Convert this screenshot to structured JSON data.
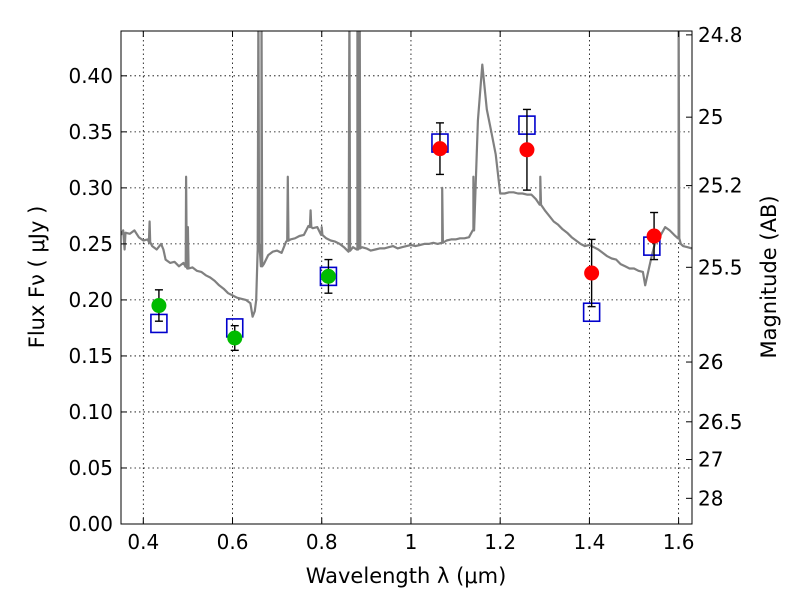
{
  "chart_data": {
    "type": "scatter",
    "xlabel": "Wavelength  λ (μm)",
    "ylabel": "Flux  Fν  ( μJy )",
    "y2label": "Magnitude (AB)",
    "xlim": [
      0.35,
      1.63
    ],
    "ylim": [
      0.0,
      0.44
    ],
    "grid": true,
    "x_ticks": [
      {
        "value": 0.4,
        "label": "0.4"
      },
      {
        "value": 0.6,
        "label": "0.6"
      },
      {
        "value": 0.8,
        "label": "0.8"
      },
      {
        "value": 1.0,
        "label": "1"
      },
      {
        "value": 1.2,
        "label": "1.2"
      },
      {
        "value": 1.4,
        "label": "1.4"
      },
      {
        "value": 1.6,
        "label": "1.6"
      }
    ],
    "y_ticks": [
      {
        "value": 0.0,
        "label": "0.00"
      },
      {
        "value": 0.05,
        "label": "0.05"
      },
      {
        "value": 0.1,
        "label": "0.10"
      },
      {
        "value": 0.15,
        "label": "0.15"
      },
      {
        "value": 0.2,
        "label": "0.20"
      },
      {
        "value": 0.25,
        "label": "0.25"
      },
      {
        "value": 0.3,
        "label": "0.30"
      },
      {
        "value": 0.35,
        "label": "0.35"
      },
      {
        "value": 0.4,
        "label": "0.40"
      }
    ],
    "y2_ticks": [
      {
        "mag": 24.8,
        "label": "24.8"
      },
      {
        "mag": 25,
        "label": "25"
      },
      {
        "mag": 25.2,
        "label": "25.2"
      },
      {
        "mag": 25.5,
        "label": "25.5"
      },
      {
        "mag": 26,
        "label": "26"
      },
      {
        "mag": 26.5,
        "label": "26.5"
      },
      {
        "mag": 27,
        "label": "27"
      },
      {
        "mag": 28,
        "label": "28"
      }
    ],
    "model_spectrum": {
      "color": "#808080",
      "points": [
        [
          0.35,
          0.258
        ],
        [
          0.355,
          0.262
        ],
        [
          0.358,
          0.245
        ],
        [
          0.36,
          0.26
        ],
        [
          0.37,
          0.259
        ],
        [
          0.38,
          0.262
        ],
        [
          0.39,
          0.256
        ],
        [
          0.4,
          0.253
        ],
        [
          0.41,
          0.254
        ],
        [
          0.42,
          0.248
        ],
        [
          0.43,
          0.245
        ],
        [
          0.44,
          0.25
        ],
        [
          0.445,
          0.245
        ],
        [
          0.45,
          0.236
        ],
        [
          0.46,
          0.233
        ],
        [
          0.47,
          0.234
        ],
        [
          0.48,
          0.23
        ],
        [
          0.49,
          0.233
        ],
        [
          0.495,
          0.23
        ],
        [
          0.5,
          0.228
        ],
        [
          0.51,
          0.229
        ],
        [
          0.52,
          0.226
        ],
        [
          0.53,
          0.225
        ],
        [
          0.54,
          0.222
        ],
        [
          0.55,
          0.22
        ],
        [
          0.56,
          0.217
        ],
        [
          0.57,
          0.213
        ],
        [
          0.58,
          0.21
        ],
        [
          0.59,
          0.206
        ],
        [
          0.6,
          0.204
        ],
        [
          0.61,
          0.202
        ],
        [
          0.62,
          0.201
        ],
        [
          0.63,
          0.2
        ],
        [
          0.64,
          0.197
        ],
        [
          0.645,
          0.185
        ],
        [
          0.65,
          0.19
        ],
        [
          0.653,
          0.2
        ],
        [
          0.656,
          0.24
        ],
        [
          0.66,
          0.25
        ],
        [
          0.665,
          0.23
        ],
        [
          0.67,
          0.232
        ],
        [
          0.68,
          0.24
        ],
        [
          0.69,
          0.243
        ],
        [
          0.7,
          0.244
        ],
        [
          0.71,
          0.242
        ],
        [
          0.72,
          0.252
        ],
        [
          0.73,
          0.254
        ],
        [
          0.74,
          0.255
        ],
        [
          0.75,
          0.257
        ],
        [
          0.76,
          0.258
        ],
        [
          0.77,
          0.266
        ],
        [
          0.78,
          0.264
        ],
        [
          0.79,
          0.265
        ],
        [
          0.8,
          0.258
        ],
        [
          0.81,
          0.255
        ],
        [
          0.82,
          0.253
        ],
        [
          0.83,
          0.252
        ],
        [
          0.84,
          0.25
        ],
        [
          0.85,
          0.247
        ],
        [
          0.86,
          0.243
        ],
        [
          0.87,
          0.247
        ],
        [
          0.88,
          0.245
        ],
        [
          0.89,
          0.247
        ],
        [
          0.9,
          0.246
        ],
        [
          0.91,
          0.244
        ],
        [
          0.92,
          0.245
        ],
        [
          0.93,
          0.246
        ],
        [
          0.94,
          0.246
        ],
        [
          0.95,
          0.247
        ],
        [
          0.96,
          0.248
        ],
        [
          0.97,
          0.246
        ],
        [
          0.98,
          0.247
        ],
        [
          0.99,
          0.248
        ],
        [
          1.0,
          0.249
        ],
        [
          1.01,
          0.248
        ],
        [
          1.02,
          0.249
        ],
        [
          1.03,
          0.25
        ],
        [
          1.04,
          0.25
        ],
        [
          1.05,
          0.251
        ],
        [
          1.06,
          0.25
        ],
        [
          1.07,
          0.251
        ],
        [
          1.08,
          0.253
        ],
        [
          1.09,
          0.254
        ],
        [
          1.1,
          0.254
        ],
        [
          1.11,
          0.255
        ],
        [
          1.12,
          0.255
        ],
        [
          1.13,
          0.256
        ],
        [
          1.14,
          0.262
        ],
        [
          1.15,
          0.36
        ],
        [
          1.16,
          0.41
        ],
        [
          1.17,
          0.37
        ],
        [
          1.18,
          0.35
        ],
        [
          1.19,
          0.33
        ],
        [
          1.2,
          0.295
        ],
        [
          1.21,
          0.295
        ],
        [
          1.22,
          0.296
        ],
        [
          1.23,
          0.296
        ],
        [
          1.24,
          0.295
        ],
        [
          1.25,
          0.295
        ],
        [
          1.26,
          0.294
        ],
        [
          1.27,
          0.294
        ],
        [
          1.28,
          0.29
        ],
        [
          1.29,
          0.285
        ],
        [
          1.3,
          0.28
        ],
        [
          1.31,
          0.275
        ],
        [
          1.32,
          0.27
        ],
        [
          1.33,
          0.267
        ],
        [
          1.34,
          0.263
        ],
        [
          1.35,
          0.26
        ],
        [
          1.36,
          0.256
        ],
        [
          1.37,
          0.253
        ],
        [
          1.38,
          0.25
        ],
        [
          1.39,
          0.248
        ],
        [
          1.4,
          0.249
        ],
        [
          1.41,
          0.247
        ],
        [
          1.42,
          0.245
        ],
        [
          1.43,
          0.242
        ],
        [
          1.44,
          0.239
        ],
        [
          1.45,
          0.237
        ],
        [
          1.46,
          0.236
        ],
        [
          1.47,
          0.232
        ],
        [
          1.48,
          0.23
        ],
        [
          1.49,
          0.228
        ],
        [
          1.5,
          0.228
        ],
        [
          1.51,
          0.226
        ],
        [
          1.52,
          0.225
        ],
        [
          1.525,
          0.213
        ],
        [
          1.53,
          0.222
        ],
        [
          1.54,
          0.24
        ],
        [
          1.55,
          0.255
        ],
        [
          1.56,
          0.258
        ],
        [
          1.57,
          0.265
        ],
        [
          1.58,
          0.262
        ],
        [
          1.59,
          0.258
        ],
        [
          1.6,
          0.255
        ],
        [
          1.605,
          0.25
        ],
        [
          1.61,
          0.248
        ],
        [
          1.62,
          0.247
        ],
        [
          1.63,
          0.246
        ]
      ],
      "emission_lines": [
        {
          "x": 0.414,
          "peak": 0.27
        },
        {
          "x": 0.496,
          "peak": 0.31
        },
        {
          "x": 0.5,
          "peak": 0.265
        },
        {
          "x": 0.658,
          "peak": 0.47
        },
        {
          "x": 0.665,
          "peak": 0.47
        },
        {
          "x": 0.724,
          "peak": 0.31
        },
        {
          "x": 0.775,
          "peak": 0.28
        },
        {
          "x": 0.8,
          "peak": 0.265
        },
        {
          "x": 0.862,
          "peak": 0.47
        },
        {
          "x": 0.88,
          "peak": 0.47
        },
        {
          "x": 0.885,
          "peak": 0.47
        },
        {
          "x": 1.07,
          "peak": 0.3
        },
        {
          "x": 1.14,
          "peak": 0.31
        },
        {
          "x": 1.29,
          "peak": 0.31
        },
        {
          "x": 1.6,
          "peak": 0.47
        }
      ]
    },
    "model_photometry": {
      "color": "#0000cc",
      "marker": "open-square",
      "points": [
        {
          "x": 0.435,
          "y": 0.179
        },
        {
          "x": 0.605,
          "y": 0.175
        },
        {
          "x": 0.815,
          "y": 0.221
        },
        {
          "x": 1.065,
          "y": 0.34
        },
        {
          "x": 1.26,
          "y": 0.356
        },
        {
          "x": 1.405,
          "y": 0.189
        },
        {
          "x": 1.54,
          "y": 0.248
        }
      ]
    },
    "observed": [
      {
        "x": 0.435,
        "y": 0.195,
        "err": 0.014,
        "color": "#00bb00"
      },
      {
        "x": 0.605,
        "y": 0.166,
        "err": 0.011,
        "color": "#00bb00"
      },
      {
        "x": 0.815,
        "y": 0.221,
        "err": 0.015,
        "color": "#00bb00"
      },
      {
        "x": 1.065,
        "y": 0.335,
        "err": 0.023,
        "color": "#ff0000"
      },
      {
        "x": 1.26,
        "y": 0.334,
        "err": 0.036,
        "color": "#ff0000"
      },
      {
        "x": 1.405,
        "y": 0.224,
        "err": 0.03,
        "color": "#ff0000"
      },
      {
        "x": 1.545,
        "y": 0.257,
        "err": 0.021,
        "color": "#ff0000"
      }
    ]
  }
}
